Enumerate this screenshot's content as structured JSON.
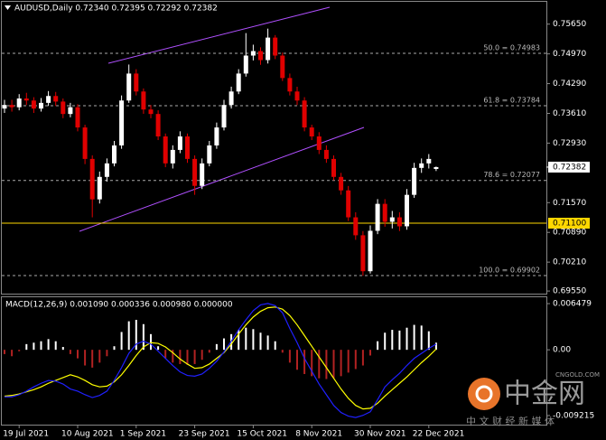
{
  "chart_data": [
    {
      "type": "candlestick",
      "title": "AUDUSD,Daily  0.72340 0.72395 0.72292 0.72382",
      "categories": [
        null,
        null,
        "19 Jul 2021",
        null,
        null,
        null,
        null,
        null,
        null,
        null,
        "10 Aug 2021",
        null,
        null,
        null,
        null,
        null,
        null,
        null,
        "1 Sep 2021",
        null,
        null,
        null,
        null,
        null,
        null,
        null,
        "23 Sep 2021",
        null,
        null,
        null,
        null,
        null,
        null,
        null,
        "15 Oct 2021",
        null,
        null,
        null,
        null,
        null,
        null,
        null,
        "8 Nov 2021",
        null,
        null,
        null,
        null,
        null,
        null,
        null,
        "30 Nov 2021",
        null,
        null,
        null,
        null,
        null,
        null,
        null,
        "22 Dec 2021",
        null
      ],
      "open": [
        0.7372,
        0.73802,
        0.7375,
        0.7395,
        0.73904,
        0.7372,
        0.7385,
        0.74007,
        0.7388,
        0.73596,
        0.7375,
        0.73288,
        0.72569,
        0.71645,
        0.72158,
        0.72467,
        0.72877,
        0.73904,
        0.7452,
        0.7411,
        0.73699,
        0.73596,
        0.73083,
        0.72467,
        0.72775,
        0.73083,
        0.72569,
        0.71953,
        0.72467,
        0.72877,
        0.73288,
        0.73802,
        0.7411,
        0.7452,
        0.74931,
        0.75034,
        0.74828,
        0.75342,
        0.74931,
        0.74418,
        0.7411,
        0.73904,
        0.73288,
        0.73083,
        0.72775,
        0.72569,
        0.72158,
        0.7185,
        0.71234,
        0.70824,
        0.70002,
        0.70926,
        0.71542,
        0.71132,
        0.71234,
        0.71029,
        0.71748,
        0.72364,
        0.72467,
        0.7234
      ],
      "high": [
        0.7392,
        0.7392,
        0.7405,
        0.7408,
        0.7398,
        0.7396,
        0.7412,
        0.741,
        0.7395,
        0.7385,
        0.7382,
        0.7335,
        0.7265,
        0.7228,
        0.7258,
        0.7298,
        0.7402,
        0.74726,
        0.7462,
        0.7418,
        0.738,
        0.7368,
        0.7315,
        0.7288,
        0.732,
        0.7315,
        0.7265,
        0.7258,
        0.7298,
        0.734,
        0.7392,
        0.7422,
        0.7462,
        0.75445,
        0.7518,
        0.7512,
        0.75547,
        0.754,
        0.75,
        0.7452,
        0.7422,
        0.7398,
        0.7335,
        0.7318,
        0.7288,
        0.7265,
        0.7225,
        0.7195,
        0.7135,
        0.7092,
        0.7105,
        0.7165,
        0.7165,
        0.7138,
        0.7135,
        0.7188,
        0.7248,
        0.7258,
        0.7268,
        0.72395
      ],
      "low": [
        0.7362,
        0.7365,
        0.7368,
        0.738,
        0.7362,
        0.7365,
        0.7378,
        0.7378,
        0.735,
        0.7352,
        0.732,
        0.7245,
        0.71234,
        0.7155,
        0.7205,
        0.724,
        0.728,
        0.7385,
        0.7402,
        0.736,
        0.735,
        0.73,
        0.7238,
        0.7235,
        0.727,
        0.7248,
        0.71748,
        0.7188,
        0.724,
        0.728,
        0.7322,
        0.7372,
        0.7405,
        0.7445,
        0.7482,
        0.7472,
        0.7475,
        0.7485,
        0.7435,
        0.7402,
        0.738,
        0.732,
        0.73,
        0.7268,
        0.7248,
        0.7208,
        0.7175,
        0.7115,
        0.7072,
        0.69899,
        0.6995,
        0.7085,
        0.7102,
        0.7098,
        0.7092,
        0.7095,
        0.7168,
        0.7225,
        0.7235,
        0.72292
      ],
      "close": [
        0.73802,
        0.7375,
        0.7395,
        0.73904,
        0.7372,
        0.7385,
        0.74007,
        0.7388,
        0.73596,
        0.7375,
        0.73288,
        0.72569,
        0.71645,
        0.72158,
        0.72467,
        0.72877,
        0.73904,
        0.7452,
        0.7411,
        0.73699,
        0.73596,
        0.73083,
        0.72467,
        0.72775,
        0.73083,
        0.72569,
        0.71953,
        0.72467,
        0.72877,
        0.73288,
        0.73802,
        0.7411,
        0.7452,
        0.74931,
        0.75034,
        0.74828,
        0.75342,
        0.74931,
        0.74418,
        0.7411,
        0.73904,
        0.73288,
        0.73083,
        0.72775,
        0.72569,
        0.72158,
        0.7185,
        0.71234,
        0.70824,
        0.70002,
        0.70926,
        0.71542,
        0.71132,
        0.71234,
        0.71029,
        0.71748,
        0.72364,
        0.72467,
        0.72569,
        0.72382
      ],
      "up_color": "#ffffff",
      "down_color": "#e00000",
      "ylim": [
        0.6949,
        0.7616
      ],
      "yticks": [
        {
          "value": 0.7565,
          "label": "0.75650"
        },
        {
          "value": 0.7497,
          "label": "0.74970"
        },
        {
          "value": 0.7429,
          "label": "0.74290"
        },
        {
          "value": 0.7361,
          "label": "0.73610"
        },
        {
          "value": 0.7293,
          "label": "0.72930"
        },
        {
          "value": 0.7157,
          "label": "0.71570"
        },
        {
          "value": 0.7089,
          "label": "0.70890"
        },
        {
          "value": 0.7021,
          "label": "0.70210"
        },
        {
          "value": 0.6955,
          "label": "0.69550"
        }
      ],
      "levels": [
        {
          "value": 0.74983,
          "label": "50.0 = 0.74983"
        },
        {
          "value": 0.73784,
          "label": "61.8 = 0.73784"
        },
        {
          "value": 0.72077,
          "label": "78.6 = 0.72077"
        },
        {
          "value": 0.69902,
          "label": "100.0 = 0.69902"
        }
      ],
      "hline": {
        "value": 0.711,
        "label": "0.71100",
        "color": "#ffd700"
      },
      "last_price": {
        "value": 0.72382,
        "label": "0.72382"
      }
    },
    {
      "type": "macd",
      "title": "MACD(12,26,9) 0.001090 0.000336 0.000980 0.000000",
      "histogram": [
        -0.0006,
        -0.0009,
        -0.0002,
        0.0008,
        0.001,
        0.0012,
        0.0015,
        0.0012,
        0.0004,
        -0.0006,
        -0.0012,
        -0.0022,
        -0.0025,
        -0.0018,
        -0.0009,
        0.0005,
        0.0025,
        0.004,
        0.0042,
        0.0036,
        0.0022,
        0.0005,
        -0.0012,
        -0.0018,
        -0.002,
        -0.0021,
        -0.002,
        -0.0014,
        -0.0004,
        0.0008,
        0.0016,
        0.0022,
        0.0028,
        0.0031,
        0.0029,
        0.0024,
        0.002,
        0.0012,
        -0.0004,
        -0.0018,
        -0.0028,
        -0.0034,
        -0.0037,
        -0.004,
        -0.0041,
        -0.004,
        -0.0037,
        -0.0032,
        -0.0027,
        -0.0022,
        -0.0008,
        0.0012,
        0.0024,
        0.0028,
        0.0027,
        0.0031,
        0.0035,
        0.0034,
        0.0026,
        0.001
      ],
      "positive_color": "#ffffff",
      "negative_color": "#b22222",
      "series": [
        {
          "color": "#ffff00",
          "values": [
            -0.0065,
            -0.0064,
            -0.0062,
            -0.0059,
            -0.0056,
            -0.0052,
            -0.0047,
            -0.0043,
            -0.0039,
            -0.0035,
            -0.0038,
            -0.0043,
            -0.0049,
            -0.0052,
            -0.0051,
            -0.0045,
            -0.0035,
            -0.0022,
            -0.0008,
            0.0004,
            0.001,
            0.0009,
            0.0004,
            -0.0004,
            -0.0013,
            -0.002,
            -0.0026,
            -0.0025,
            -0.002,
            -0.0012,
            -0.0004,
            0.0008,
            0.0022,
            0.0035,
            0.0046,
            0.0054,
            0.0059,
            0.006,
            0.0057,
            0.0048,
            0.0035,
            0.002,
            0.0005,
            -0.001,
            -0.0025,
            -0.004,
            -0.0055,
            -0.0068,
            -0.0078,
            -0.0083,
            -0.0082,
            -0.0075,
            -0.0065,
            -0.0056,
            -0.0047,
            -0.0038,
            -0.0028,
            -0.0018,
            -0.0009,
            0.0001
          ]
        },
        {
          "color": "#2020ff",
          "values": [
            -0.0066,
            -0.0066,
            -0.0063,
            -0.0058,
            -0.0052,
            -0.0047,
            -0.0043,
            -0.0044,
            -0.0048,
            -0.0055,
            -0.0058,
            -0.0063,
            -0.0067,
            -0.0064,
            -0.0058,
            -0.0043,
            -0.0025,
            -0.0005,
            0.0008,
            0.0012,
            0.0008,
            -0.0002,
            -0.0012,
            -0.0022,
            -0.0031,
            -0.0036,
            -0.0037,
            -0.0034,
            -0.0026,
            -0.0016,
            -0.0003,
            0.0012,
            0.0028,
            0.0042,
            0.0055,
            0.0063,
            0.0065,
            0.0062,
            0.0052,
            0.003,
            0.001,
            -0.0012,
            -0.003,
            -0.0048,
            -0.0063,
            -0.0078,
            -0.0088,
            -0.0093,
            -0.0095,
            -0.0092,
            -0.0087,
            -0.007,
            -0.0052,
            -0.0042,
            -0.0033,
            -0.0022,
            -0.0012,
            -0.0005,
            0.0002,
            0.0008
          ]
        }
      ],
      "ylim": [
        -0.0105,
        0.0075
      ],
      "yticks": [
        {
          "value": 0.006479,
          "label": "0.006479"
        },
        {
          "value": 0,
          "label": "0.00"
        },
        {
          "value": -0.009215,
          "label": "-0.009215"
        }
      ]
    }
  ],
  "watermark": {
    "brand": "中金网",
    "site": "CNGOLD.COM",
    "slogan": "中 文 财 经 新 媒 体"
  }
}
